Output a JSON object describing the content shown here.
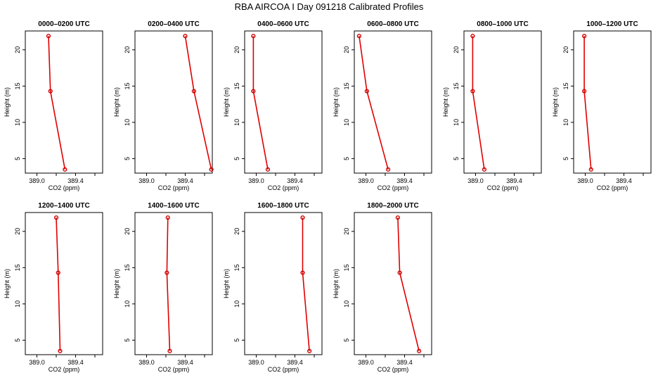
{
  "page": {
    "title": "RBA AIRCOA I  Day 091218  Calibrated Profiles"
  },
  "style": {
    "line_color": "#e00000",
    "point_color": "#cc0000"
  },
  "chart_data": [
    {
      "type": "line",
      "title": "0000–0200 UTC",
      "xlabel": "CO2 (ppm)",
      "ylabel": "Height (m)",
      "xlim": [
        388.88,
        389.68
      ],
      "ylim": [
        3.0,
        22.6
      ],
      "x_ticks": [
        389.0,
        389.2,
        389.4,
        389.6
      ],
      "x_tick_labels": [
        "389.0",
        "",
        "389.4",
        ""
      ],
      "y_ticks": [
        5,
        10,
        15,
        20
      ],
      "y_tick_labels": [
        "5",
        "10",
        "15",
        "20"
      ],
      "x": [
        389.29,
        389.14,
        389.12
      ],
      "y": [
        3.5,
        14.3,
        21.9
      ]
    },
    {
      "type": "line",
      "title": "0200–0400 UTC",
      "xlabel": "CO2 (ppm)",
      "ylabel": "Height (m)",
      "xlim": [
        388.88,
        389.68
      ],
      "ylim": [
        3.0,
        22.6
      ],
      "x_ticks": [
        389.0,
        389.2,
        389.4,
        389.6
      ],
      "x_tick_labels": [
        "389.0",
        "",
        "389.4",
        ""
      ],
      "y_ticks": [
        5,
        10,
        15,
        20
      ],
      "y_tick_labels": [
        "5",
        "10",
        "15",
        "20"
      ],
      "x": [
        389.67,
        389.49,
        389.4
      ],
      "y": [
        3.5,
        14.3,
        21.9
      ]
    },
    {
      "type": "line",
      "title": "0400–0600 UTC",
      "xlabel": "CO2 (ppm)",
      "ylabel": "Height (m)",
      "xlim": [
        388.88,
        389.68
      ],
      "ylim": [
        3.0,
        22.6
      ],
      "x_ticks": [
        389.0,
        389.2,
        389.4,
        389.6
      ],
      "x_tick_labels": [
        "389.0",
        "",
        "389.4",
        ""
      ],
      "y_ticks": [
        5,
        10,
        15,
        20
      ],
      "y_tick_labels": [
        "5",
        "10",
        "15",
        "20"
      ],
      "x": [
        389.12,
        388.97,
        388.97
      ],
      "y": [
        3.5,
        14.3,
        21.9
      ]
    },
    {
      "type": "line",
      "title": "0600–0800 UTC",
      "xlabel": "CO2 (ppm)",
      "ylabel": "Height (m)",
      "xlim": [
        388.88,
        389.68
      ],
      "ylim": [
        3.0,
        22.6
      ],
      "x_ticks": [
        389.0,
        389.2,
        389.4,
        389.6
      ],
      "x_tick_labels": [
        "389.0",
        "",
        "389.4",
        ""
      ],
      "y_ticks": [
        5,
        10,
        15,
        20
      ],
      "y_tick_labels": [
        "5",
        "10",
        "15",
        "20"
      ],
      "x": [
        389.23,
        389.01,
        388.93
      ],
      "y": [
        3.5,
        14.3,
        21.9
      ]
    },
    {
      "type": "line",
      "title": "0800–1000 UTC",
      "xlabel": "CO2 (ppm)",
      "ylabel": "Height (m)",
      "xlim": [
        388.88,
        389.68
      ],
      "ylim": [
        3.0,
        22.6
      ],
      "x_ticks": [
        389.0,
        389.2,
        389.4,
        389.6
      ],
      "x_tick_labels": [
        "389.0",
        "",
        "389.4",
        ""
      ],
      "y_ticks": [
        5,
        10,
        15,
        20
      ],
      "y_tick_labels": [
        "5",
        "10",
        "15",
        "20"
      ],
      "x": [
        389.09,
        388.97,
        388.97
      ],
      "y": [
        3.5,
        14.3,
        21.9
      ]
    },
    {
      "type": "line",
      "title": "1000–1200 UTC",
      "xlabel": "CO2 (ppm)",
      "ylabel": "Height (m)",
      "xlim": [
        388.88,
        389.68
      ],
      "ylim": [
        3.0,
        22.6
      ],
      "x_ticks": [
        389.0,
        389.2,
        389.4,
        389.6
      ],
      "x_tick_labels": [
        "389.0",
        "",
        "389.4",
        ""
      ],
      "y_ticks": [
        5,
        10,
        15,
        20
      ],
      "y_tick_labels": [
        "5",
        "10",
        "15",
        "20"
      ],
      "x": [
        389.06,
        388.99,
        388.99
      ],
      "y": [
        3.5,
        14.3,
        21.9
      ]
    },
    {
      "type": "line",
      "title": "1200–1400 UTC",
      "xlabel": "CO2 (ppm)",
      "ylabel": "Height (m)",
      "xlim": [
        388.88,
        389.68
      ],
      "ylim": [
        3.0,
        22.6
      ],
      "x_ticks": [
        389.0,
        389.2,
        389.4,
        389.6
      ],
      "x_tick_labels": [
        "389.0",
        "",
        "389.4",
        ""
      ],
      "y_ticks": [
        5,
        10,
        15,
        20
      ],
      "y_tick_labels": [
        "5",
        "10",
        "15",
        "20"
      ],
      "x": [
        389.24,
        389.22,
        389.2
      ],
      "y": [
        3.5,
        14.3,
        21.9
      ]
    },
    {
      "type": "line",
      "title": "1400–1600 UTC",
      "xlabel": "CO2 (ppm)",
      "ylabel": "Height (m)",
      "xlim": [
        388.88,
        389.68
      ],
      "ylim": [
        3.0,
        22.6
      ],
      "x_ticks": [
        389.0,
        389.2,
        389.4,
        389.6
      ],
      "x_tick_labels": [
        "389.0",
        "",
        "389.4",
        ""
      ],
      "y_ticks": [
        5,
        10,
        15,
        20
      ],
      "y_tick_labels": [
        "5",
        "10",
        "15",
        "20"
      ],
      "x": [
        389.24,
        389.21,
        389.22
      ],
      "y": [
        3.5,
        14.3,
        21.9
      ]
    },
    {
      "type": "line",
      "title": "1600–1800 UTC",
      "xlabel": "CO2 (ppm)",
      "ylabel": "Height (m)",
      "xlim": [
        388.88,
        389.68
      ],
      "ylim": [
        3.0,
        22.6
      ],
      "x_ticks": [
        389.0,
        389.2,
        389.4,
        389.6
      ],
      "x_tick_labels": [
        "389.0",
        "",
        "389.4",
        ""
      ],
      "y_ticks": [
        5,
        10,
        15,
        20
      ],
      "y_tick_labels": [
        "5",
        "10",
        "15",
        "20"
      ],
      "x": [
        389.55,
        389.48,
        389.48
      ],
      "y": [
        3.5,
        14.3,
        21.9
      ]
    },
    {
      "type": "line",
      "title": "1800–2000 UTC",
      "xlabel": "CO2 (ppm)",
      "ylabel": "Height (m)",
      "xlim": [
        388.88,
        389.68
      ],
      "ylim": [
        3.0,
        22.6
      ],
      "x_ticks": [
        389.0,
        389.2,
        389.4,
        389.6
      ],
      "x_tick_labels": [
        "389.0",
        "",
        "389.4",
        ""
      ],
      "y_ticks": [
        5,
        10,
        15,
        20
      ],
      "y_tick_labels": [
        "5",
        "10",
        "15",
        "20"
      ],
      "x": [
        389.55,
        389.35,
        389.33
      ],
      "y": [
        3.5,
        14.3,
        21.9
      ]
    }
  ]
}
